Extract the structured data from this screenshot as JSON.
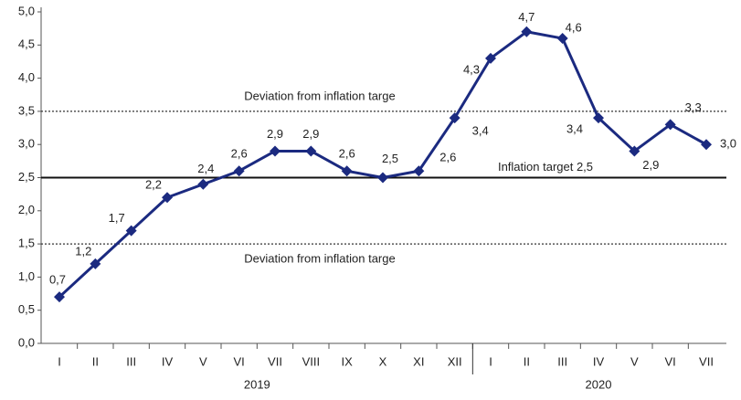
{
  "chart_data": {
    "type": "line",
    "categories": [
      "I",
      "II",
      "III",
      "IV",
      "V",
      "VI",
      "VII",
      "VIII",
      "IX",
      "X",
      "XI",
      "XII",
      "I",
      "II",
      "III",
      "IV",
      "V",
      "VI",
      "VII"
    ],
    "groups": [
      {
        "label": "2019",
        "count": 12
      },
      {
        "label": "2020",
        "count": 7
      }
    ],
    "series": [
      {
        "color": "#1b2a80",
        "values": [
          0.7,
          1.2,
          1.7,
          2.2,
          2.4,
          2.6,
          2.9,
          2.9,
          2.6,
          2.5,
          2.6,
          3.4,
          4.3,
          4.7,
          4.6,
          3.4,
          2.9,
          3.3,
          3.0
        ],
        "value_labels": [
          "0,7",
          "1,2",
          "1,7",
          "2,2",
          "2,4",
          "2,6",
          "2,9",
          "2,9",
          "2,6",
          "2,5",
          "2,6",
          "3,4",
          "4,3",
          "4,7",
          "4,6",
          "3,4",
          "2,9",
          "3,3",
          "3,0"
        ]
      }
    ],
    "ylim": [
      0,
      5
    ],
    "yticks": [
      {
        "value": 0,
        "label": "0,0"
      },
      {
        "value": 0.5,
        "label": "0,5"
      },
      {
        "value": 1,
        "label": "1,0"
      },
      {
        "value": 1.5,
        "label": "1,5"
      },
      {
        "value": 2,
        "label": "2,0"
      },
      {
        "value": 2.5,
        "label": "2,5"
      },
      {
        "value": 3,
        "label": "3,0"
      },
      {
        "value": 3.5,
        "label": "3,5"
      },
      {
        "value": 4,
        "label": "4,0"
      },
      {
        "value": 4.5,
        "label": "4,5"
      },
      {
        "value": 5,
        "label": "5,0"
      }
    ],
    "reference_lines": [
      {
        "value": 3.5,
        "label": "Deviation from inflation targe",
        "style": "dotted"
      },
      {
        "value": 2.5,
        "label": "Inflation target 2,5",
        "style": "solid"
      },
      {
        "value": 1.5,
        "label": "Deviation from inflation targe",
        "style": "dotted"
      }
    ]
  }
}
